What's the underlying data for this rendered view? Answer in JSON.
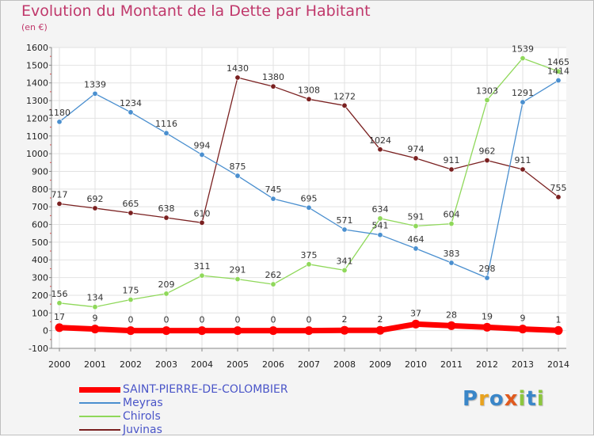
{
  "header": {
    "title": "Evolution du Montant de la Dette par Habitant",
    "unit": "(en €)"
  },
  "logo": {
    "text": "Proxiti",
    "letters": [
      {
        "ch": "P",
        "color": "#3a86c8"
      },
      {
        "ch": "r",
        "color": "#e8a21e"
      },
      {
        "ch": "o",
        "color": "#3a86c8"
      },
      {
        "ch": "x",
        "color": "#e05a1e"
      },
      {
        "ch": "i",
        "color": "#8cc63e"
      },
      {
        "ch": "t",
        "color": "#3a86c8"
      },
      {
        "ch": "i",
        "color": "#8cc63e"
      }
    ]
  },
  "chart_data": {
    "type": "line",
    "title": "Evolution du Montant de la Dette par Habitant",
    "ylabel": "(en €)",
    "xlabel": "",
    "x": [
      2000,
      2001,
      2002,
      2003,
      2004,
      2005,
      2006,
      2007,
      2008,
      2009,
      2010,
      2011,
      2012,
      2013,
      2014
    ],
    "ylim": [
      -100,
      1600
    ],
    "yticks": [
      -100,
      0,
      100,
      200,
      300,
      400,
      500,
      600,
      700,
      800,
      900,
      1000,
      1100,
      1200,
      1300,
      1400,
      1500,
      1600
    ],
    "grid": true,
    "legend_position": "bottom-left",
    "series": [
      {
        "name": "SAINT-PIERRE-DE-COLOMBIER",
        "color": "#ff0000",
        "values": [
          17,
          9,
          0,
          0,
          0,
          0,
          0,
          0,
          2,
          2,
          37,
          28,
          19,
          9,
          1
        ]
      },
      {
        "name": "Meyras",
        "color": "#4a8fcf",
        "values": [
          1180,
          1339,
          1234,
          1116,
          994,
          875,
          745,
          695,
          571,
          541,
          464,
          383,
          298,
          1291,
          1414
        ]
      },
      {
        "name": "Chirols",
        "color": "#8fd85a",
        "values": [
          156,
          134,
          175,
          209,
          311,
          291,
          262,
          375,
          341,
          634,
          591,
          604,
          1303,
          1539,
          1465
        ]
      },
      {
        "name": "Juvinas",
        "color": "#7a2020",
        "values": [
          717,
          692,
          665,
          638,
          610,
          1430,
          1380,
          1308,
          1272,
          1024,
          974,
          911,
          962,
          911,
          755
        ]
      }
    ]
  }
}
